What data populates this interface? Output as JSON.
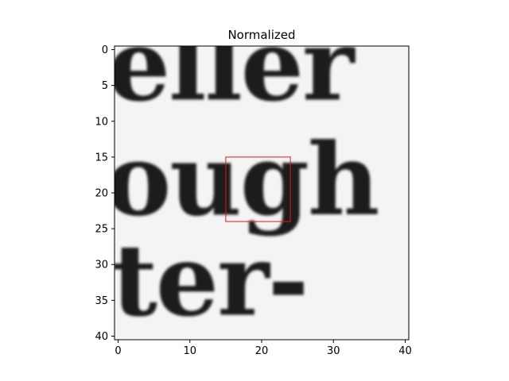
{
  "chart_data": {
    "type": "heatmap",
    "title": "Normalized",
    "xlabel": "",
    "ylabel": "",
    "xlim": [
      -0.5,
      40.5
    ],
    "ylim": [
      40.5,
      -0.5
    ],
    "x_ticks": [
      0,
      10,
      20,
      30,
      40
    ],
    "y_ticks": [
      0,
      5,
      10,
      15,
      20,
      25,
      30,
      35,
      40
    ],
    "colormap": "gray",
    "grid": false,
    "image_content": {
      "rows": [
        {
          "text": "eller",
          "baseline_y": 7
        },
        {
          "text": "ough",
          "baseline_y": 23
        },
        {
          "text": "ter-",
          "baseline_y": 37
        }
      ]
    },
    "annotation": {
      "shape": "rectangle",
      "color": "#e8141c",
      "x_range": [
        15,
        24
      ],
      "y_range": [
        15,
        24
      ]
    }
  }
}
